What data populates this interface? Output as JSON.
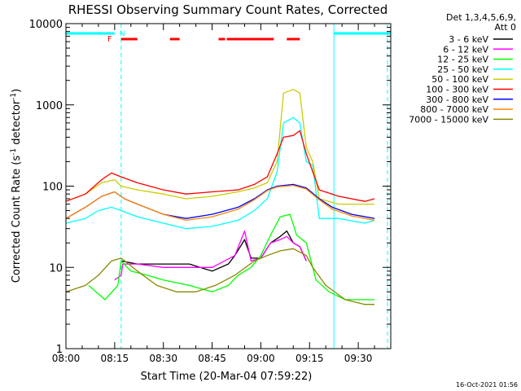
{
  "chart_data": {
    "type": "line",
    "title": "RHESSI Observing Summary Count Rates, Corrected",
    "xlabel": "Start Time (20-Mar-04 07:59:22)",
    "ylabel": "Corrected Count Rate (s",
    "ylabel_sup": "-1",
    "ylabel_tail": " detector",
    "ylabel_end": ")",
    "yscale": "log",
    "ylim": [
      1,
      10000
    ],
    "xlim_minutes": [
      0,
      100
    ],
    "x_ticks": [
      {
        "m": 0,
        "label": "08:00"
      },
      {
        "m": 15,
        "label": "08:15"
      },
      {
        "m": 30,
        "label": "08:30"
      },
      {
        "m": 45,
        "label": "08:45"
      },
      {
        "m": 60,
        "label": "09:00"
      },
      {
        "m": 75,
        "label": "09:15"
      },
      {
        "m": 90,
        "label": "09:30"
      }
    ],
    "y_ticks": [
      {
        "v": 1,
        "label": "1"
      },
      {
        "v": 10,
        "label": "10"
      },
      {
        "v": 100,
        "label": "100"
      },
      {
        "v": 1000,
        "label": "1000"
      },
      {
        "v": 10000,
        "label": "10000"
      }
    ],
    "legend_header": [
      "Det 1,3,4,5,6,9,",
      "Att 0"
    ],
    "legend_placement": "right",
    "series": [
      {
        "name": "3 - 6 keV",
        "color": "#000000",
        "points": [
          [
            17,
            12
          ],
          [
            22,
            11
          ],
          [
            30,
            11
          ],
          [
            38,
            11
          ],
          [
            45,
            9
          ],
          [
            50,
            11
          ],
          [
            52,
            14
          ],
          [
            55,
            22
          ],
          [
            57,
            13
          ],
          [
            60,
            13
          ],
          [
            63,
            20
          ],
          [
            66,
            24
          ],
          [
            68,
            28
          ],
          [
            70,
            20
          ],
          [
            72,
            18
          ],
          [
            74,
            12
          ]
        ]
      },
      {
        "name": "6 - 12 keV",
        "color": "#ff00ff",
        "points": [
          [
            15,
            7
          ],
          [
            17,
            8
          ],
          [
            17.5,
            11
          ],
          [
            22,
            11
          ],
          [
            30,
            10
          ],
          [
            38,
            10
          ],
          [
            45,
            10
          ],
          [
            52,
            14
          ],
          [
            55,
            28
          ],
          [
            57,
            12
          ],
          [
            60,
            13
          ],
          [
            63,
            20
          ],
          [
            66,
            22
          ],
          [
            68,
            24
          ],
          [
            70,
            20
          ],
          [
            72,
            18
          ],
          [
            74,
            12
          ]
        ]
      },
      {
        "name": "12 - 25 keV",
        "color": "#00ff00",
        "points": [
          [
            7,
            6
          ],
          [
            12,
            4
          ],
          [
            16,
            6
          ],
          [
            17,
            12
          ],
          [
            20,
            9
          ],
          [
            25,
            8
          ],
          [
            30,
            7
          ],
          [
            38,
            6
          ],
          [
            45,
            5
          ],
          [
            50,
            6
          ],
          [
            53,
            8
          ],
          [
            57,
            10
          ],
          [
            60,
            14
          ],
          [
            63,
            25
          ],
          [
            66,
            42
          ],
          [
            69,
            45
          ],
          [
            71,
            25
          ],
          [
            74,
            20
          ],
          [
            77,
            7
          ],
          [
            81,
            5
          ],
          [
            86,
            4
          ],
          [
            92,
            4
          ],
          [
            95,
            4
          ]
        ]
      },
      {
        "name": "25 - 50 keV",
        "color": "#00ffff",
        "points": [
          [
            0,
            35
          ],
          [
            6,
            40
          ],
          [
            10,
            50
          ],
          [
            14,
            55
          ],
          [
            17,
            50
          ],
          [
            22,
            42
          ],
          [
            30,
            35
          ],
          [
            37,
            30
          ],
          [
            45,
            32
          ],
          [
            53,
            38
          ],
          [
            58,
            50
          ],
          [
            62,
            70
          ],
          [
            65,
            150
          ],
          [
            67,
            600
          ],
          [
            70,
            700
          ],
          [
            72,
            600
          ],
          [
            74,
            200
          ],
          [
            76,
            180
          ],
          [
            78,
            40
          ],
          [
            84,
            40
          ],
          [
            92,
            35
          ],
          [
            95,
            38
          ]
        ]
      },
      {
        "name": "50 - 100 keV",
        "color": "#cccc00",
        "points": [
          [
            0,
            65
          ],
          [
            6,
            80
          ],
          [
            11,
            110
          ],
          [
            15,
            120
          ],
          [
            17,
            100
          ],
          [
            22,
            90
          ],
          [
            30,
            80
          ],
          [
            37,
            70
          ],
          [
            45,
            75
          ],
          [
            53,
            85
          ],
          [
            58,
            95
          ],
          [
            62,
            110
          ],
          [
            65,
            200
          ],
          [
            67,
            1400
          ],
          [
            70,
            1550
          ],
          [
            72,
            1400
          ],
          [
            74,
            300
          ],
          [
            76,
            200
          ],
          [
            78,
            70
          ],
          [
            84,
            60
          ],
          [
            92,
            60
          ],
          [
            95,
            60
          ]
        ]
      },
      {
        "name": "100 - 300 keV",
        "color": "#ff0000",
        "points": [
          [
            0,
            65
          ],
          [
            6,
            80
          ],
          [
            11,
            120
          ],
          [
            14,
            145
          ],
          [
            17,
            130
          ],
          [
            22,
            110
          ],
          [
            30,
            90
          ],
          [
            37,
            80
          ],
          [
            45,
            85
          ],
          [
            53,
            90
          ],
          [
            58,
            105
          ],
          [
            62,
            130
          ],
          [
            65,
            250
          ],
          [
            67,
            400
          ],
          [
            70,
            420
          ],
          [
            72,
            480
          ],
          [
            74,
            250
          ],
          [
            76,
            150
          ],
          [
            78,
            90
          ],
          [
            84,
            75
          ],
          [
            92,
            65
          ],
          [
            95,
            70
          ]
        ]
      },
      {
        "name": "300 - 800 keV",
        "color": "#0000ff",
        "points": [
          [
            0,
            40
          ],
          [
            6,
            55
          ],
          [
            11,
            75
          ],
          [
            15,
            85
          ],
          [
            18,
            70
          ],
          [
            22,
            60
          ],
          [
            30,
            45
          ],
          [
            37,
            40
          ],
          [
            45,
            45
          ],
          [
            53,
            55
          ],
          [
            58,
            70
          ],
          [
            62,
            90
          ],
          [
            65,
            100
          ],
          [
            70,
            105
          ],
          [
            74,
            95
          ],
          [
            78,
            70
          ],
          [
            82,
            55
          ],
          [
            88,
            45
          ],
          [
            95,
            40
          ]
        ]
      },
      {
        "name": "800 - 7000 keV",
        "color": "#ff8800",
        "points": [
          [
            0,
            40
          ],
          [
            6,
            55
          ],
          [
            11,
            75
          ],
          [
            15,
            85
          ],
          [
            18,
            70
          ],
          [
            22,
            60
          ],
          [
            30,
            45
          ],
          [
            37,
            38
          ],
          [
            45,
            42
          ],
          [
            53,
            52
          ],
          [
            58,
            68
          ],
          [
            62,
            88
          ],
          [
            65,
            98
          ],
          [
            70,
            102
          ],
          [
            74,
            92
          ],
          [
            78,
            68
          ],
          [
            82,
            52
          ],
          [
            88,
            43
          ],
          [
            95,
            38
          ]
        ]
      },
      {
        "name": "7000 - 15000 keV",
        "color": "#888800",
        "points": [
          [
            0,
            5
          ],
          [
            6,
            6
          ],
          [
            10,
            8
          ],
          [
            14,
            12
          ],
          [
            17,
            13
          ],
          [
            22,
            9
          ],
          [
            28,
            6
          ],
          [
            34,
            5
          ],
          [
            40,
            5
          ],
          [
            46,
            6
          ],
          [
            52,
            8
          ],
          [
            58,
            12
          ],
          [
            62,
            14
          ],
          [
            66,
            16
          ],
          [
            70,
            17
          ],
          [
            74,
            14
          ],
          [
            76,
            10
          ],
          [
            80,
            6
          ],
          [
            86,
            4
          ],
          [
            92,
            3.5
          ],
          [
            95,
            3.5
          ]
        ]
      }
    ],
    "annotations": [
      {
        "label": "F",
        "color": "#ff0000"
      },
      {
        "label": "N",
        "color": "#00ffff"
      }
    ],
    "flag_bars": {
      "cyan": [
        [
          0,
          15
        ],
        [
          82.5,
          100
        ]
      ],
      "red": [
        [
          17,
          22
        ],
        [
          32,
          35
        ],
        [
          47,
          49
        ],
        [
          49.5,
          64
        ],
        [
          68,
          72
        ]
      ]
    },
    "vertical_lines": {
      "cyan_solid": [
        0,
        82.5
      ],
      "cyan_dashed": [
        17,
        99
      ]
    },
    "date_stamp": "16-Oct-2021 01:56"
  }
}
